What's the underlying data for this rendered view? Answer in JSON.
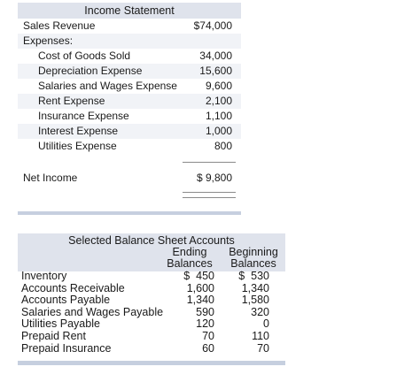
{
  "income_statement": {
    "title": "Income Statement",
    "sales_revenue": {
      "label": "Sales Revenue",
      "value": "$74,000"
    },
    "expenses_label": "Expenses:",
    "expenses": [
      {
        "label": "Cost of Goods Sold",
        "value": "34,000"
      },
      {
        "label": "Depreciation Expense",
        "value": "15,600"
      },
      {
        "label": "Salaries and Wages Expense",
        "value": "9,600"
      },
      {
        "label": "Rent Expense",
        "value": "2,100"
      },
      {
        "label": "Insurance Expense",
        "value": "1,100"
      },
      {
        "label": "Interest Expense",
        "value": "1,000"
      },
      {
        "label": "Utilities Expense",
        "value": "800"
      }
    ],
    "net_income": {
      "label": "Net Income",
      "value": "$ 9,800"
    }
  },
  "balance_sheet": {
    "title": "Selected Balance Sheet Accounts",
    "col_ending_line1": "Ending",
    "col_ending_line2": "Balances",
    "col_beginning_line1": "Beginning",
    "col_beginning_line2": "Balances",
    "rows": [
      {
        "label": "Inventory",
        "ending": "$  450",
        "beginning": "$  530"
      },
      {
        "label": "Accounts Receivable",
        "ending": "1,600",
        "beginning": "1,340"
      },
      {
        "label": "Accounts Payable",
        "ending": "1,340",
        "beginning": "1,580"
      },
      {
        "label": "Salaries and Wages Payable",
        "ending": "590",
        "beginning": "320"
      },
      {
        "label": "Utilities Payable",
        "ending": "120",
        "beginning": "0"
      },
      {
        "label": "Prepaid Rent",
        "ending": "70",
        "beginning": "110"
      },
      {
        "label": "Prepaid Insurance",
        "ending": "60",
        "beginning": "70"
      }
    ]
  }
}
